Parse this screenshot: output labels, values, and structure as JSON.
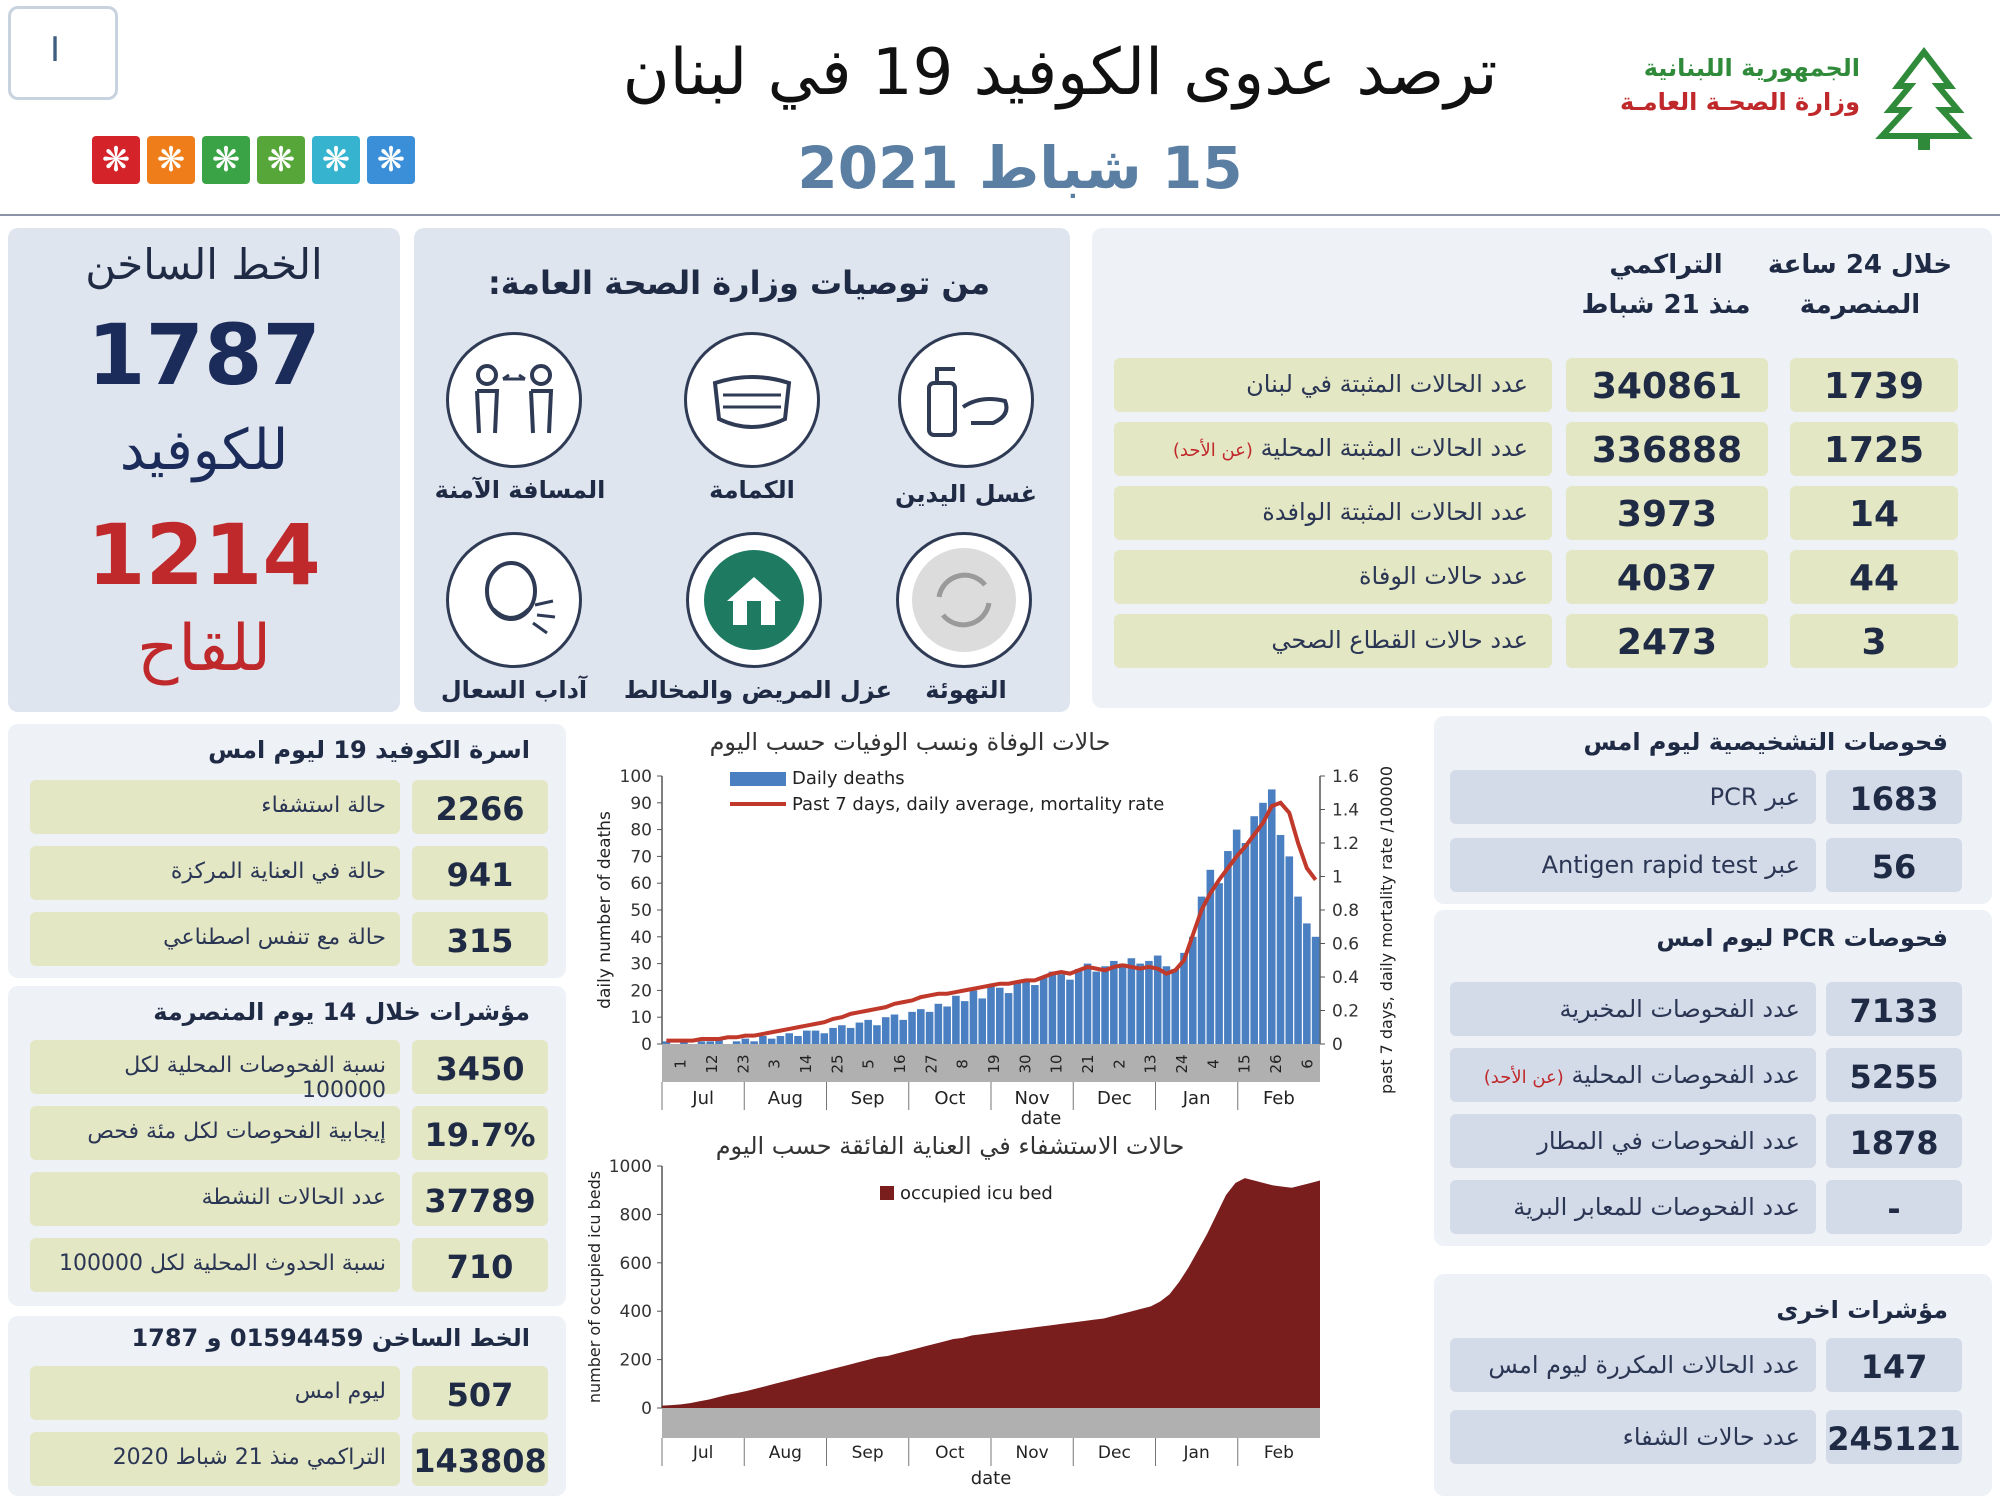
{
  "header": {
    "title": "ترصد عدوى الكوفيد 19 في لبنان",
    "date": "15 شباط 2021",
    "ministry_line1": "الجمهورية اللبنانية",
    "ministry_line2": "وزارة الصحـة العامـة",
    "corner_label": "I",
    "flower_colors": [
      "#d4242a",
      "#ef7d1a",
      "#3aa346",
      "#57a63a",
      "#36b4cf",
      "#3b8ed8"
    ]
  },
  "hotline": {
    "title": "الخط الساخن",
    "covid_number": "1787",
    "covid_label": "للكوفيد",
    "vaccine_number": "1214",
    "vaccine_label": "للقاح"
  },
  "recommendations": {
    "title": "من توصيات وزارة الصحة العامة:",
    "items": [
      {
        "label": "غسل اليدين",
        "icon": "hand-wash-icon"
      },
      {
        "label": "الكمامة",
        "icon": "mask-icon"
      },
      {
        "label": "المسافة الآمنة",
        "icon": "distance-icon"
      },
      {
        "label": "التهوئة",
        "icon": "ventilation-icon"
      },
      {
        "label": "عزل المريض والمخالط",
        "icon": "isolation-home-icon"
      },
      {
        "label": "آداب السعال",
        "icon": "cough-icon"
      }
    ]
  },
  "cases": {
    "col_24h_line1": "خلال 24 ساعة",
    "col_24h_line2": "المنصرمة",
    "col_cum_line1": "التراكمي",
    "col_cum_line2": "منذ 21 شباط",
    "rows": [
      {
        "label": "عدد الحالات المثبتة في لبنان",
        "note": "",
        "daily": "1739",
        "cumulative": "340861"
      },
      {
        "label": "عدد الحالات المثبتة المحلية",
        "note": "(عن الأحد)",
        "daily": "1725",
        "cumulative": "336888"
      },
      {
        "label": "عدد الحالات المثبتة الوافدة",
        "note": "",
        "daily": "14",
        "cumulative": "3973"
      },
      {
        "label": "عدد حالات الوفاة",
        "note": "",
        "daily": "44",
        "cumulative": "4037"
      },
      {
        "label": "عدد حالات القطاع الصحي",
        "note": "",
        "daily": "3",
        "cumulative": "2473"
      }
    ]
  },
  "beds": {
    "title": "اسرة الكوفيد 19 ليوم امس",
    "rows": [
      {
        "label": "حالة استشفاء",
        "value": "2266"
      },
      {
        "label": "حالة في العناية المركزة",
        "value": "941"
      },
      {
        "label": "حالة مع تنفس اصطناعي",
        "value": "315"
      }
    ]
  },
  "indicators14": {
    "title": "مؤشرات خلال 14 يوم المنصرمة",
    "rows": [
      {
        "label": "نسبة الفحوصات المحلية لكل 100000",
        "value": "3450"
      },
      {
        "label": "إيجابية الفحوصات لكل مئة فحص",
        "value": "19.7%"
      },
      {
        "label": "عدد الحالات النشطة",
        "value": "37789"
      },
      {
        "label": "نسبة الحدوث المحلية لكل 100000",
        "value": "710"
      }
    ]
  },
  "hotline_calls": {
    "title": "الخط الساخن 01594459 و 1787",
    "rows": [
      {
        "label": "ليوم امس",
        "value": "507"
      },
      {
        "label": "التراكمي منذ 21 شباط 2020",
        "value": "143808"
      }
    ]
  },
  "diagnostic": {
    "title": "فحوصات التشخيصية ليوم امس",
    "rows": [
      {
        "label": "عبر PCR",
        "value": "1683"
      },
      {
        "label": "عبر Antigen rapid test",
        "value": "56"
      }
    ]
  },
  "pcr": {
    "title": "فحوصات PCR ليوم امس",
    "rows": [
      {
        "label": "عدد الفحوصات المخبرية",
        "note": "",
        "value": "7133"
      },
      {
        "label": "عدد الفحوصات المحلية",
        "note": "(عن الأحد)",
        "value": "5255"
      },
      {
        "label": "عدد الفحوصات في المطار",
        "note": "",
        "value": "1878"
      },
      {
        "label": "عدد الفحوصات للمعابر البرية",
        "note": "",
        "value": "-"
      }
    ]
  },
  "other": {
    "title": "مؤشرات اخرى",
    "rows": [
      {
        "label": "عدد الحالات المكررة ليوم امس",
        "value": "147"
      },
      {
        "label": "عدد حالات الشفاء",
        "value": "245121"
      }
    ]
  },
  "chart_data": [
    {
      "type": "bar",
      "title": "حالات الوفاة ونسب الوفيات حسب اليوم",
      "xlabel": "date",
      "ylabel": "daily number of deaths",
      "y2label": "past 7 days, daily mortality rate /100000",
      "ylim": [
        0,
        100
      ],
      "y2lim": [
        0,
        1.6
      ],
      "yticks": [
        0,
        10,
        20,
        30,
        40,
        50,
        60,
        70,
        80,
        90,
        100
      ],
      "y2ticks": [
        0,
        0.2,
        0.4,
        0.6,
        0.8,
        1,
        1.2,
        1.4,
        1.6
      ],
      "day_labels": [
        "1",
        "12",
        "23",
        "3",
        "14",
        "25",
        "5",
        "16",
        "27",
        "8",
        "19",
        "30",
        "10",
        "21",
        "2",
        "13",
        "24",
        "4",
        "15",
        "26",
        "6"
      ],
      "months": [
        "Jul",
        "Aug",
        "Sep",
        "Oct",
        "Nov",
        "Dec",
        "Jan",
        "Feb"
      ],
      "legend": [
        "Daily deaths",
        "Past 7 days, daily average, mortality rate"
      ],
      "series": [
        {
          "name": "Daily deaths",
          "color": "#4a7fc1",
          "values": [
            1,
            0,
            1,
            0,
            1,
            1,
            2,
            0,
            1,
            2,
            1,
            3,
            2,
            3,
            4,
            3,
            5,
            5,
            4,
            6,
            7,
            6,
            8,
            9,
            7,
            10,
            11,
            9,
            12,
            13,
            12,
            15,
            14,
            18,
            16,
            20,
            17,
            22,
            21,
            19,
            23,
            24,
            22,
            25,
            27,
            26,
            24,
            28,
            30,
            27,
            29,
            31,
            30,
            32,
            30,
            31,
            33,
            29,
            28,
            34,
            40,
            55,
            65,
            60,
            72,
            80,
            75,
            85,
            90,
            95,
            78,
            70,
            55,
            45,
            40
          ]
        },
        {
          "name": "Past 7 days, daily average, mortality rate",
          "color": "#c0392b",
          "axis": "y2",
          "values": [
            0.02,
            0.02,
            0.02,
            0.02,
            0.03,
            0.03,
            0.03,
            0.04,
            0.04,
            0.05,
            0.05,
            0.06,
            0.07,
            0.08,
            0.09,
            0.1,
            0.11,
            0.12,
            0.13,
            0.15,
            0.16,
            0.18,
            0.19,
            0.2,
            0.21,
            0.22,
            0.24,
            0.25,
            0.26,
            0.28,
            0.29,
            0.3,
            0.3,
            0.31,
            0.32,
            0.33,
            0.34,
            0.35,
            0.36,
            0.36,
            0.37,
            0.38,
            0.38,
            0.4,
            0.42,
            0.43,
            0.42,
            0.44,
            0.46,
            0.45,
            0.44,
            0.46,
            0.47,
            0.46,
            0.45,
            0.46,
            0.45,
            0.42,
            0.44,
            0.5,
            0.65,
            0.8,
            0.9,
            0.98,
            1.05,
            1.12,
            1.18,
            1.25,
            1.32,
            1.42,
            1.44,
            1.38,
            1.2,
            1.05,
            0.98
          ]
        }
      ]
    },
    {
      "type": "area",
      "title": "حالات الاستشفاء في العناية الفائقة حسب اليوم",
      "xlabel": "date",
      "ylabel": "number of occupied icu beds",
      "ylim": [
        0,
        1000
      ],
      "yticks": [
        0,
        200,
        400,
        600,
        800,
        1000
      ],
      "months": [
        "Jul",
        "Aug",
        "Sep",
        "Oct",
        "Nov",
        "Dec",
        "Jan",
        "Feb"
      ],
      "legend": [
        "occupied icu bed"
      ],
      "series": [
        {
          "name": "occupied icu bed",
          "color": "#7a1d1d",
          "values": [
            10,
            12,
            15,
            20,
            28,
            35,
            45,
            55,
            62,
            70,
            80,
            90,
            100,
            110,
            120,
            130,
            140,
            150,
            160,
            170,
            180,
            190,
            200,
            210,
            215,
            225,
            235,
            245,
            255,
            265,
            275,
            285,
            290,
            300,
            305,
            310,
            315,
            320,
            325,
            330,
            335,
            340,
            345,
            350,
            355,
            360,
            365,
            370,
            380,
            390,
            400,
            410,
            420,
            440,
            470,
            520,
            580,
            650,
            720,
            800,
            880,
            930,
            950,
            940,
            930,
            920,
            915,
            910,
            920,
            930,
            940
          ]
        }
      ]
    }
  ]
}
